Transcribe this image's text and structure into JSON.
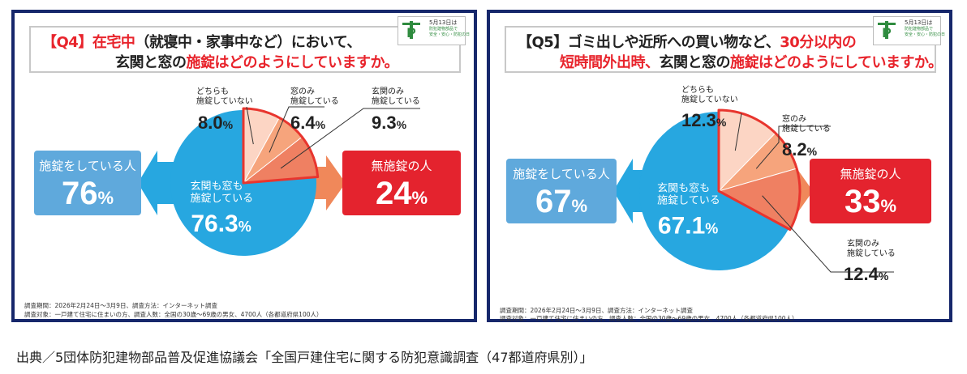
{
  "source": "出典／5団体防犯建物部品普及促進協議会「全国戸建住宅に関する防犯意識調査（47都道府県別）」",
  "panels": {
    "q4": {
      "title_line1_prefix": "【Q4】在宅中",
      "title_line1_rest": "（就寝中・家事中など）において、",
      "title_line2_plain": "玄関と窓の",
      "title_line2_red": "施錠はどのようにしていますか。",
      "logo": {
        "date": "5月13日は",
        "line1": "防犯建物部品で",
        "line2": "安全・安心・防犯の日"
      },
      "footnote1": "調査期間：2026年2月24日～3月9日、調査方法：インターネット調査",
      "footnote2": "調査対象：一戸建て住宅に住まいの方、調査人数：全国の30歳～69歳の男女、4700人（各都道府県100人）",
      "colors": {
        "title_border": "#c8c8c8",
        "accent_red": "#e8242c",
        "frame": "#16276b"
      }
    },
    "q5": {
      "title_line1_prefix": "【Q5】ゴミ出しや近所への買い物など、",
      "title_line1_red": "30分以内の",
      "title_line2_red": "短時間外出時、",
      "title_line2_plain": "玄関と窓の",
      "title_line2_red2": "施錠はどのようにしていますか。",
      "logo": {
        "date": "5月13日は",
        "line1": "防犯建物部品で",
        "line2": "安全・安心・防犯の日"
      },
      "footnote1": "調査期間：2026年2月24日～3月9日、調査方法：インターネット調査",
      "footnote2": "調査対象：一戸建て住宅に住まいの方、調査人数：全国の30歳～69歳の男女、4700人（各都道府県100人）"
    }
  },
  "chart_data": [
    {
      "type": "pie",
      "title": "【Q4】在宅中（就寝中・家事中など）において、玄関と窓の施錠はどのようにしていますか。",
      "slices": [
        {
          "label": "玄関も窓も施錠している",
          "value": 76.3,
          "display": "76.3",
          "color": "#27a7e0"
        },
        {
          "label": "どちらも施錠していない",
          "value": 8.0,
          "display": "8.0",
          "color": "#fcd5c4"
        },
        {
          "label": "窓のみ施錠している",
          "value": 6.4,
          "display": "6.4",
          "color": "#f6a47c"
        },
        {
          "label": "玄関のみ施錠している",
          "value": 9.3,
          "display": "9.3",
          "color": "#ef8062"
        }
      ],
      "unit": "%",
      "summary": {
        "locked_label": "施錠をしている人",
        "locked_value": "76",
        "unlocked_label": "無施錠の人",
        "unlocked_value": "24"
      },
      "colors": {
        "locked": "#5fa9dc",
        "unlocked": "#e4232e",
        "arrow_left": "#27a7e0",
        "arrow_right": "#f0885a",
        "slice_border": "#e8352e"
      }
    },
    {
      "type": "pie",
      "title": "【Q5】ゴミ出しや近所への買い物など、30分以内の短時間外出時、玄関と窓の施錠はどのようにしていますか。",
      "slices": [
        {
          "label": "玄関も窓も施錠している",
          "value": 67.1,
          "display": "67.1",
          "color": "#27a7e0"
        },
        {
          "label": "どちらも施錠していない",
          "value": 12.3,
          "display": "12.3",
          "color": "#fcd5c4"
        },
        {
          "label": "窓のみ施錠している",
          "value": 8.2,
          "display": "8.2",
          "color": "#f6a47c"
        },
        {
          "label": "玄関のみ施錠している",
          "value": 12.4,
          "display": "12.4",
          "color": "#ef8062"
        }
      ],
      "unit": "%",
      "summary": {
        "locked_label": "施錠をしている人",
        "locked_value": "67",
        "unlocked_label": "無施錠の人",
        "unlocked_value": "33"
      },
      "colors": {
        "locked": "#5fa9dc",
        "unlocked": "#e4232e",
        "arrow_left": "#27a7e0",
        "arrow_right": "#f0885a",
        "slice_border": "#e8352e"
      }
    }
  ]
}
